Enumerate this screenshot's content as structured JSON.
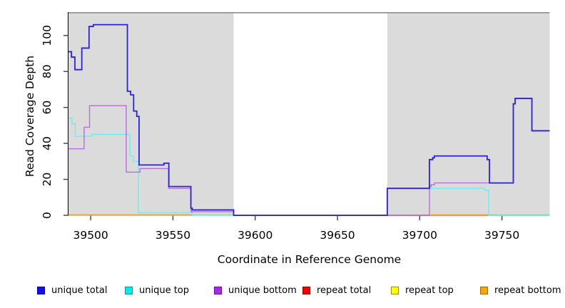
{
  "figure": {
    "background": "#FFFFFF",
    "plot_bg": "#DBDBDB",
    "top_border_color": "#8E8E8E",
    "axis_color": "#000000",
    "tick_color": "#404040"
  },
  "chart_data": {
    "type": "line",
    "subtype": "step-coverage",
    "title": "",
    "xlabel": "Coordinate in Reference Genome",
    "ylabel": "Read Coverage Depth",
    "xlim": [
      39486.5,
      39779
    ],
    "ylim": [
      0,
      113
    ],
    "x_ticks": [
      39500,
      39550,
      39600,
      39650,
      39700,
      39750
    ],
    "y_ticks": [
      0,
      20,
      40,
      60,
      80,
      100
    ],
    "grid": false,
    "legend_position": "bottom",
    "shaded_regions": [
      {
        "from": 39486.5,
        "to": 39586.9,
        "color": "#DBDBDB"
      },
      {
        "from": 39680.3,
        "to": 39779.0,
        "color": "#DBDBDB"
      }
    ],
    "series": [
      {
        "name": "repeat total",
        "color": "#E04455",
        "width": 1.6,
        "points": [
          [
            39680.3,
            0
          ]
        ]
      },
      {
        "name": "repeat top",
        "color": "#F5F500",
        "width": 1.3,
        "points": [],
        "note": "at depth 0; visible only blended with unique top as green zero segments"
      },
      {
        "name": "repeat bottom",
        "color": "#FFA519",
        "width": 1.7,
        "segments": [
          [
            39486.5,
            39561.9
          ],
          [
            39705.9,
            39742.3
          ]
        ],
        "depth": 0
      },
      {
        "name": "unique top",
        "color": "#6FEDED",
        "width": 1.4,
        "points": [
          [
            39486.5,
            54
          ],
          [
            39488.6,
            51
          ],
          [
            39490.6,
            44
          ],
          [
            39500.8,
            45
          ],
          [
            39523.8,
            33
          ],
          [
            39526.0,
            30
          ],
          [
            39529.0,
            1.5
          ],
          [
            39561.9,
            0
          ],
          [
            39680.3,
            15
          ],
          [
            39739.6,
            14
          ],
          [
            39741.9,
            0
          ]
        ]
      },
      {
        "name": "unique bottom",
        "color": "#B76FE0",
        "width": 1.4,
        "points": [
          [
            39486.5,
            37
          ],
          [
            39496.0,
            49
          ],
          [
            39499.3,
            61
          ],
          [
            39521.6,
            24
          ],
          [
            39530.0,
            26
          ],
          [
            39547.4,
            15
          ],
          [
            39561.0,
            2
          ],
          [
            39586.9,
            0
          ],
          [
            39705.9,
            16
          ],
          [
            39707.0,
            17
          ],
          [
            39709.0,
            18
          ],
          [
            39756.9,
            62
          ],
          [
            39758.0,
            65
          ],
          [
            39768.2,
            47
          ]
        ]
      },
      {
        "name": "unique total",
        "color": "#2B21DF",
        "width": 1.8,
        "points": [
          [
            39486.5,
            91
          ],
          [
            39488.3,
            88
          ],
          [
            39490.4,
            81
          ],
          [
            39494.6,
            93
          ],
          [
            39499.0,
            105
          ],
          [
            39501.6,
            106
          ],
          [
            39522.3,
            69
          ],
          [
            39524.3,
            67
          ],
          [
            39526.1,
            58
          ],
          [
            39528.0,
            55
          ],
          [
            39529.4,
            28
          ],
          [
            39544.5,
            29
          ],
          [
            39547.5,
            16
          ],
          [
            39560.9,
            4
          ],
          [
            39561.7,
            3
          ],
          [
            39586.9,
            0
          ],
          [
            39680.3,
            15
          ],
          [
            39705.9,
            31
          ],
          [
            39707.9,
            32
          ],
          [
            39708.9,
            33
          ],
          [
            39741.0,
            31
          ],
          [
            39742.4,
            18
          ],
          [
            39756.9,
            62
          ],
          [
            39758.0,
            65
          ],
          [
            39768.2,
            47
          ]
        ]
      }
    ],
    "zero_overlap_segments": [
      {
        "from": 39561.9,
        "to": 39586.9,
        "color": "#8FD48F"
      },
      {
        "from": 39742.3,
        "to": 39779.0,
        "color": "#8FD48F"
      }
    ]
  },
  "legend": {
    "items": [
      {
        "label": "unique total",
        "color": "#0F0FE8",
        "border": "#0000A0"
      },
      {
        "label": "unique top",
        "color": "#00EDED",
        "border": "#009898"
      },
      {
        "label": "unique bottom",
        "color": "#A12BE8",
        "border": "#6A0DA8"
      },
      {
        "label": "repeat total",
        "color": "#F00000",
        "border": "#900000"
      },
      {
        "label": "repeat top",
        "color": "#FFFF00",
        "border": "#998F00"
      },
      {
        "label": "repeat bottom",
        "color": "#FFA500",
        "border": "#A86A00"
      }
    ]
  }
}
